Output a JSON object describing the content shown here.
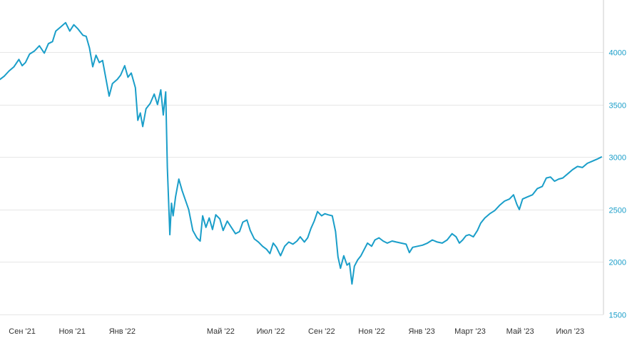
{
  "chart_data": {
    "type": "line",
    "title": "",
    "xlabel": "",
    "ylabel": "",
    "ylim": [
      1500,
      4500
    ],
    "grid": true,
    "line_color": "#1a9ec9",
    "y_ticks": [
      {
        "value": 1500,
        "label": "1500"
      },
      {
        "value": 2000,
        "label": "2000"
      },
      {
        "value": 2500,
        "label": "2500"
      },
      {
        "value": 3000,
        "label": "3000"
      },
      {
        "value": 3500,
        "label": "3500"
      },
      {
        "value": 4000,
        "label": "4000"
      }
    ],
    "x_ticks": [
      {
        "date": "2021-09-01",
        "label": "Сен '21"
      },
      {
        "date": "2021-11-01",
        "label": "Ноя '21"
      },
      {
        "date": "2022-01-01",
        "label": "Янв '22"
      },
      {
        "date": "2022-05-01",
        "label": "Май '22"
      },
      {
        "date": "2022-07-01",
        "label": "Июл '22"
      },
      {
        "date": "2022-09-01",
        "label": "Сен '22"
      },
      {
        "date": "2022-11-01",
        "label": "Ноя '22"
      },
      {
        "date": "2023-01-01",
        "label": "Янв '23"
      },
      {
        "date": "2023-03-01",
        "label": "Март '23"
      },
      {
        "date": "2023-05-01",
        "label": "Май '23"
      },
      {
        "date": "2023-07-01",
        "label": "Июл '23"
      }
    ],
    "xlim": [
      "2021-08-05",
      "2023-08-08"
    ],
    "series": [
      {
        "points": [
          [
            "2021-08-05",
            3740
          ],
          [
            "2021-08-10",
            3770
          ],
          [
            "2021-08-16",
            3820
          ],
          [
            "2021-08-22",
            3860
          ],
          [
            "2021-08-28",
            3930
          ],
          [
            "2021-09-01",
            3870
          ],
          [
            "2021-09-05",
            3900
          ],
          [
            "2021-09-10",
            3980
          ],
          [
            "2021-09-16",
            4010
          ],
          [
            "2021-09-22",
            4060
          ],
          [
            "2021-09-28",
            3990
          ],
          [
            "2021-10-03",
            4080
          ],
          [
            "2021-10-08",
            4100
          ],
          [
            "2021-10-12",
            4200
          ],
          [
            "2021-10-18",
            4240
          ],
          [
            "2021-10-24",
            4280
          ],
          [
            "2021-10-29",
            4200
          ],
          [
            "2021-11-03",
            4260
          ],
          [
            "2021-11-08",
            4220
          ],
          [
            "2021-11-14",
            4160
          ],
          [
            "2021-11-18",
            4150
          ],
          [
            "2021-11-22",
            4040
          ],
          [
            "2021-11-26",
            3860
          ],
          [
            "2021-11-30",
            3970
          ],
          [
            "2021-12-04",
            3900
          ],
          [
            "2021-12-08",
            3920
          ],
          [
            "2021-12-12",
            3750
          ],
          [
            "2021-12-16",
            3580
          ],
          [
            "2021-12-20",
            3700
          ],
          [
            "2021-12-26",
            3740
          ],
          [
            "2021-12-30",
            3780
          ],
          [
            "2022-01-04",
            3870
          ],
          [
            "2022-01-08",
            3760
          ],
          [
            "2022-01-12",
            3800
          ],
          [
            "2022-01-17",
            3660
          ],
          [
            "2022-01-20",
            3350
          ],
          [
            "2022-01-23",
            3420
          ],
          [
            "2022-01-26",
            3290
          ],
          [
            "2022-01-30",
            3460
          ],
          [
            "2022-02-04",
            3510
          ],
          [
            "2022-02-09",
            3600
          ],
          [
            "2022-02-13",
            3500
          ],
          [
            "2022-02-17",
            3640
          ],
          [
            "2022-02-20",
            3400
          ],
          [
            "2022-02-23",
            3620
          ],
          [
            "2022-02-25",
            2900
          ],
          [
            "2022-02-28",
            2260
          ],
          [
            "2022-03-02",
            2560
          ],
          [
            "2022-03-04",
            2440
          ],
          [
            "2022-03-07",
            2620
          ],
          [
            "2022-03-11",
            2790
          ],
          [
            "2022-03-15",
            2680
          ],
          [
            "2022-03-19",
            2590
          ],
          [
            "2022-03-23",
            2500
          ],
          [
            "2022-03-28",
            2300
          ],
          [
            "2022-04-02",
            2230
          ],
          [
            "2022-04-06",
            2200
          ],
          [
            "2022-04-09",
            2440
          ],
          [
            "2022-04-13",
            2330
          ],
          [
            "2022-04-17",
            2420
          ],
          [
            "2022-04-21",
            2310
          ],
          [
            "2022-04-25",
            2450
          ],
          [
            "2022-04-30",
            2410
          ],
          [
            "2022-05-04",
            2300
          ],
          [
            "2022-05-09",
            2390
          ],
          [
            "2022-05-14",
            2330
          ],
          [
            "2022-05-19",
            2270
          ],
          [
            "2022-05-24",
            2290
          ],
          [
            "2022-05-28",
            2380
          ],
          [
            "2022-06-02",
            2400
          ],
          [
            "2022-06-06",
            2300
          ],
          [
            "2022-06-11",
            2220
          ],
          [
            "2022-06-16",
            2190
          ],
          [
            "2022-06-21",
            2150
          ],
          [
            "2022-06-26",
            2120
          ],
          [
            "2022-06-30",
            2080
          ],
          [
            "2022-07-04",
            2180
          ],
          [
            "2022-07-08",
            2140
          ],
          [
            "2022-07-13",
            2060
          ],
          [
            "2022-07-18",
            2150
          ],
          [
            "2022-07-23",
            2190
          ],
          [
            "2022-07-28",
            2170
          ],
          [
            "2022-08-02",
            2200
          ],
          [
            "2022-08-06",
            2240
          ],
          [
            "2022-08-11",
            2190
          ],
          [
            "2022-08-15",
            2230
          ],
          [
            "2022-08-19",
            2320
          ],
          [
            "2022-08-23",
            2390
          ],
          [
            "2022-08-27",
            2480
          ],
          [
            "2022-09-01",
            2440
          ],
          [
            "2022-09-05",
            2460
          ],
          [
            "2022-09-09",
            2450
          ],
          [
            "2022-09-14",
            2440
          ],
          [
            "2022-09-18",
            2290
          ],
          [
            "2022-09-21",
            2050
          ],
          [
            "2022-09-24",
            1940
          ],
          [
            "2022-09-28",
            2060
          ],
          [
            "2022-10-02",
            1970
          ],
          [
            "2022-10-05",
            1990
          ],
          [
            "2022-10-08",
            1790
          ],
          [
            "2022-10-11",
            1960
          ],
          [
            "2022-10-15",
            2020
          ],
          [
            "2022-10-19",
            2060
          ],
          [
            "2022-10-23",
            2120
          ],
          [
            "2022-10-27",
            2180
          ],
          [
            "2022-11-01",
            2150
          ],
          [
            "2022-11-05",
            2210
          ],
          [
            "2022-11-10",
            2230
          ],
          [
            "2022-11-15",
            2200
          ],
          [
            "2022-11-20",
            2180
          ],
          [
            "2022-11-26",
            2200
          ],
          [
            "2022-12-01",
            2190
          ],
          [
            "2022-12-07",
            2180
          ],
          [
            "2022-12-13",
            2170
          ],
          [
            "2022-12-17",
            2090
          ],
          [
            "2022-12-21",
            2140
          ],
          [
            "2022-12-27",
            2150
          ],
          [
            "2023-01-02",
            2160
          ],
          [
            "2023-01-08",
            2180
          ],
          [
            "2023-01-14",
            2210
          ],
          [
            "2023-01-20",
            2190
          ],
          [
            "2023-01-26",
            2180
          ],
          [
            "2023-02-01",
            2210
          ],
          [
            "2023-02-07",
            2270
          ],
          [
            "2023-02-12",
            2240
          ],
          [
            "2023-02-16",
            2180
          ],
          [
            "2023-02-20",
            2210
          ],
          [
            "2023-02-24",
            2250
          ],
          [
            "2023-02-28",
            2260
          ],
          [
            "2023-03-05",
            2240
          ],
          [
            "2023-03-10",
            2300
          ],
          [
            "2023-03-14",
            2370
          ],
          [
            "2023-03-19",
            2420
          ],
          [
            "2023-03-25",
            2460
          ],
          [
            "2023-03-31",
            2490
          ],
          [
            "2023-04-06",
            2540
          ],
          [
            "2023-04-12",
            2580
          ],
          [
            "2023-04-18",
            2600
          ],
          [
            "2023-04-23",
            2640
          ],
          [
            "2023-04-27",
            2550
          ],
          [
            "2023-04-30",
            2500
          ],
          [
            "2023-05-04",
            2600
          ],
          [
            "2023-05-10",
            2620
          ],
          [
            "2023-05-16",
            2640
          ],
          [
            "2023-05-22",
            2700
          ],
          [
            "2023-05-28",
            2720
          ],
          [
            "2023-06-02",
            2800
          ],
          [
            "2023-06-07",
            2810
          ],
          [
            "2023-06-12",
            2770
          ],
          [
            "2023-06-17",
            2790
          ],
          [
            "2023-06-22",
            2800
          ],
          [
            "2023-06-28",
            2840
          ],
          [
            "2023-07-04",
            2880
          ],
          [
            "2023-07-10",
            2910
          ],
          [
            "2023-07-16",
            2900
          ],
          [
            "2023-07-22",
            2940
          ],
          [
            "2023-07-28",
            2960
          ],
          [
            "2023-08-03",
            2980
          ],
          [
            "2023-08-08",
            3000
          ]
        ]
      }
    ]
  }
}
